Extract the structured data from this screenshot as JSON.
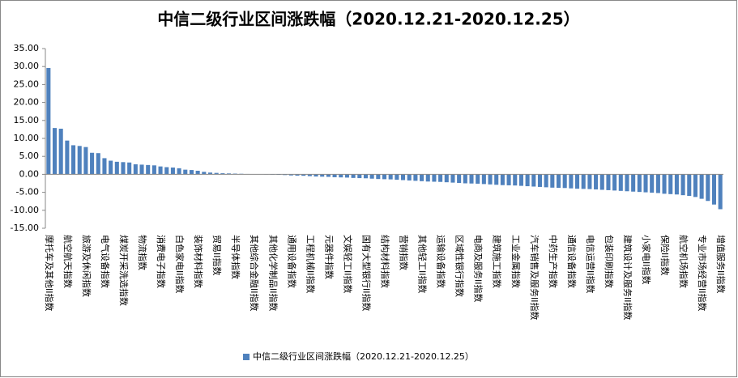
{
  "chart_data": {
    "type": "bar",
    "title": "中信二级行业区间涨跌幅（2020.12.21-2020.12.25）",
    "series": [
      {
        "name": "中信二级行业区间涨跌幅（2020.12.21-2020.12.25）",
        "color": "#4f81bd",
        "values": [
          29.6,
          12.9,
          12.7,
          9.4,
          8.1,
          7.9,
          7.6,
          6.0,
          5.9,
          4.5,
          3.8,
          3.5,
          3.4,
          3.3,
          2.8,
          2.7,
          2.6,
          2.5,
          2.2,
          2.0,
          1.9,
          1.7,
          1.3,
          1.2,
          1.0,
          0.7,
          0.5,
          0.4,
          0.3,
          0.25,
          0.2,
          0.15,
          0.1,
          0.05,
          0.02,
          -0.05,
          -0.1,
          -0.15,
          -0.2,
          -0.3,
          -0.35,
          -0.4,
          -0.5,
          -0.6,
          -0.65,
          -0.7,
          -0.8,
          -0.85,
          -0.9,
          -1.0,
          -1.05,
          -1.1,
          -1.2,
          -1.3,
          -1.35,
          -1.4,
          -1.5,
          -1.6,
          -1.7,
          -1.8,
          -1.9,
          -2.0,
          -2.05,
          -2.1,
          -2.2,
          -2.3,
          -2.4,
          -2.5,
          -2.55,
          -2.6,
          -2.7,
          -2.8,
          -2.9,
          -3.0,
          -3.05,
          -3.1,
          -3.2,
          -3.3,
          -3.4,
          -3.5,
          -3.6,
          -3.7,
          -3.75,
          -3.8,
          -3.9,
          -4.0,
          -4.05,
          -4.1,
          -4.2,
          -4.3,
          -4.4,
          -4.5,
          -4.6,
          -4.7,
          -4.8,
          -4.9,
          -5.0,
          -5.1,
          -5.2,
          -5.4,
          -5.5,
          -5.6,
          -5.8,
          -6.0,
          -6.3,
          -6.8,
          -7.4,
          -8.4,
          -9.7
        ]
      }
    ],
    "categories": [
      "摩托车及其他II指数",
      null,
      null,
      "航空航天指数",
      null,
      null,
      "旅游及休闲指数",
      null,
      null,
      "电气设备指数",
      null,
      null,
      "煤炭开采洗选指数",
      null,
      null,
      "物流指数",
      null,
      null,
      "消费电子指数",
      null,
      null,
      "白色家电II指数",
      null,
      null,
      "装饰材料指数",
      null,
      null,
      "贸易II指数",
      null,
      null,
      "半导体指数",
      null,
      null,
      "其他综合金融II指数",
      null,
      null,
      "其他化学制品II指数",
      null,
      null,
      "通用设备指数",
      null,
      null,
      "工程机械II指数",
      null,
      null,
      "元器件指数",
      null,
      null,
      "文娱轻工II指数",
      null,
      null,
      "国有大型银行II指数",
      null,
      null,
      "结构材料指数",
      null,
      null,
      "营销指数",
      null,
      null,
      "其他轻工II指数",
      null,
      null,
      "运输设备指数",
      null,
      null,
      "区域性银行指数",
      null,
      null,
      "电商及服务II指数",
      null,
      null,
      "建筑施工指数",
      null,
      null,
      "工业金属指数",
      null,
      null,
      "汽车销售及服务II指数",
      null,
      null,
      "中药生产指数",
      null,
      null,
      "通信设备指数",
      null,
      null,
      "电信运营II指数",
      null,
      null,
      "包装印刷指数",
      null,
      null,
      "建筑设计及服务II指数",
      null,
      null,
      "小家电II指数",
      null,
      null,
      "保险II指数",
      null,
      null,
      "航空机场指数",
      null,
      null,
      "专业市场经营II指数",
      null,
      null,
      "增值服务II指数"
    ],
    "ylim": [
      -15,
      35
    ],
    "yticks": [
      {
        "value": -15,
        "label": "-15.00"
      },
      {
        "value": -10,
        "label": "-10.00"
      },
      {
        "value": -5,
        "label": "-5.00"
      },
      {
        "value": 0,
        "label": "0.00"
      },
      {
        "value": 5,
        "label": "5.00"
      },
      {
        "value": 10,
        "label": "10.00"
      },
      {
        "value": 15,
        "label": "15.00"
      },
      {
        "value": 20,
        "label": "20.00"
      },
      {
        "value": 25,
        "label": "25.00"
      },
      {
        "value": 30,
        "label": "30.00"
      },
      {
        "value": 35,
        "label": "35.00"
      }
    ],
    "grid": false,
    "legend": "bottom"
  }
}
